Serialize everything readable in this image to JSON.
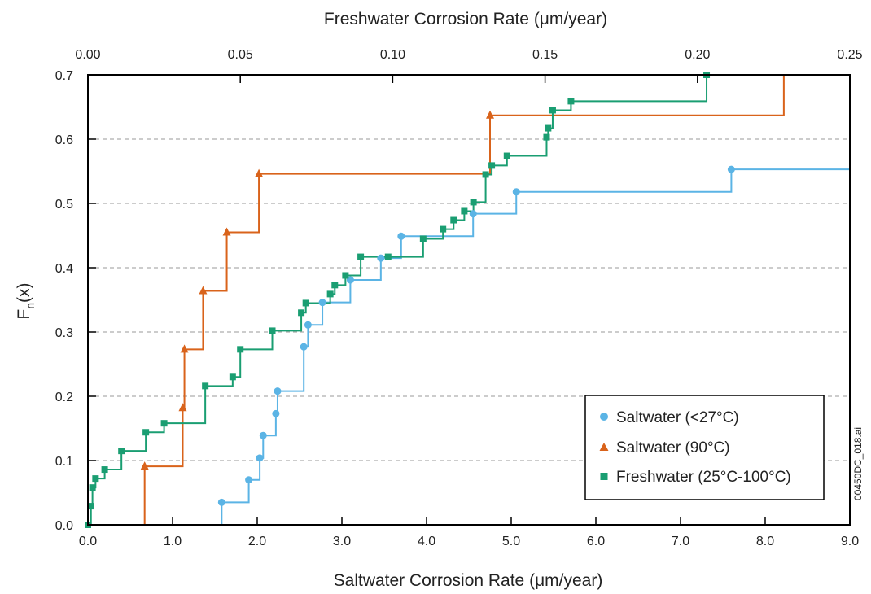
{
  "chart_data": {
    "type": "line",
    "step": true,
    "title": "",
    "xlabel_bottom": "Saltwater Corrosion Rate (μm/year)",
    "xlabel_top": "Freshwater Corrosion Rate (μm/year)",
    "ylabel": "F",
    "ylabel_subscript": "n",
    "ylabel_suffix": "(x)",
    "xlim_bottom": [
      0,
      9
    ],
    "xlim_top": [
      0,
      0.25
    ],
    "ylim": [
      0,
      0.7
    ],
    "x_ticks_bottom": [
      "0.0",
      "1.0",
      "2.0",
      "3.0",
      "4.0",
      "5.0",
      "6.0",
      "7.0",
      "8.0",
      "9.0"
    ],
    "x_ticks_top": [
      "0.00",
      "0.05",
      "0.10",
      "0.15",
      "0.20",
      "0.25"
    ],
    "y_ticks": [
      "0.0",
      "0.1",
      "0.2",
      "0.3",
      "0.4",
      "0.5",
      "0.6",
      "0.7"
    ],
    "grid": "horizontal-dashed",
    "legend_position": "bottom-right",
    "side_note": "00450DC_018.ai",
    "series": [
      {
        "name": "Saltwater (<27°C)",
        "axis": "bottom",
        "color": "#5BB4E5",
        "marker": "circle",
        "x": [
          1.58,
          1.9,
          2.03,
          2.07,
          2.22,
          2.24,
          2.55,
          2.6,
          2.77,
          3.1,
          3.46,
          3.7,
          4.55,
          5.06,
          7.6
        ],
        "y": [
          0.035,
          0.07,
          0.104,
          0.139,
          0.173,
          0.208,
          0.277,
          0.311,
          0.346,
          0.381,
          0.415,
          0.449,
          0.484,
          0.518,
          0.553
        ],
        "end_x": 9.0
      },
      {
        "name": "Saltwater (90°C)",
        "axis": "bottom",
        "color": "#D9631B",
        "marker": "triangle",
        "x": [
          0.67,
          1.12,
          1.14,
          1.36,
          1.64,
          2.02,
          4.75
        ],
        "y": [
          0.091,
          0.182,
          0.273,
          0.364,
          0.455,
          0.546,
          0.637
        ],
        "end_x": 8.22,
        "end_y": 0.7
      },
      {
        "name": "Freshwater (25°C-100°C)",
        "axis": "top",
        "color": "#1A9E72",
        "marker": "square",
        "x": [
          0.0,
          0.001,
          0.0015,
          0.0025,
          0.0055,
          0.011,
          0.019,
          0.025,
          0.0385,
          0.0475,
          0.05,
          0.0605,
          0.07,
          0.0715,
          0.0795,
          0.081,
          0.0845,
          0.0895,
          0.0985,
          0.11,
          0.1165,
          0.12,
          0.1235,
          0.1265,
          0.1305,
          0.1325,
          0.1375,
          0.1505,
          0.151,
          0.1525,
          0.1585,
          0.203
        ],
        "y": [
          0.0,
          0.029,
          0.058,
          0.072,
          0.086,
          0.115,
          0.144,
          0.158,
          0.216,
          0.23,
          0.273,
          0.302,
          0.33,
          0.345,
          0.359,
          0.373,
          0.388,
          0.417,
          0.417,
          0.445,
          0.46,
          0.474,
          0.488,
          0.502,
          0.545,
          0.559,
          0.574,
          0.603,
          0.617,
          0.645,
          0.659,
          0.7
        ]
      }
    ]
  }
}
